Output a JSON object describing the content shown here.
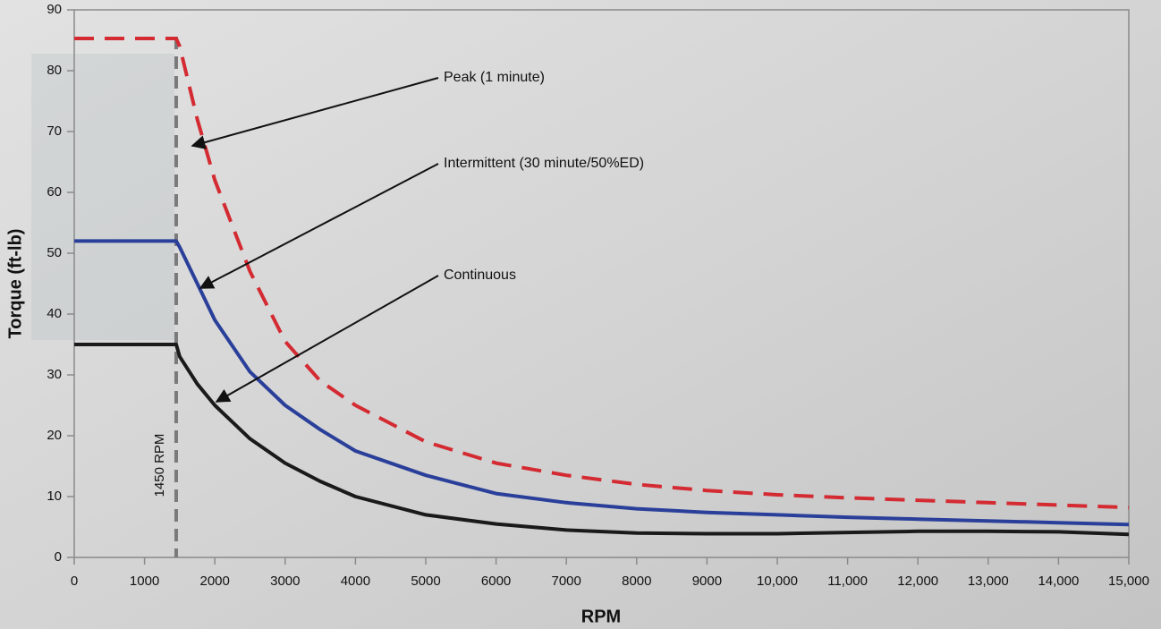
{
  "chart_data": {
    "type": "line",
    "x_label": "RPM",
    "y_label": "Torque (ft-lb)",
    "xlim": [
      0,
      15000
    ],
    "ylim": [
      0,
      90
    ],
    "xticks": [
      0,
      1000,
      2000,
      3000,
      4000,
      5000,
      6000,
      7000,
      8000,
      9000,
      {
        "value": 10000,
        "label": "10,000"
      },
      {
        "value": 11000,
        "label": "11,000"
      },
      {
        "value": 12000,
        "label": "12,000"
      },
      {
        "value": 13000,
        "label": "13,000"
      },
      {
        "value": 14000,
        "label": "14,000"
      },
      {
        "value": 15000,
        "label": "15,000"
      }
    ],
    "yticks": [
      0,
      10,
      20,
      30,
      40,
      50,
      60,
      70,
      80,
      90
    ],
    "vline": {
      "x": 1450,
      "label": "1450 RPM",
      "color": "#7a7a7a"
    },
    "x": [
      0,
      1450,
      1500,
      1750,
      2000,
      2500,
      3000,
      3500,
      4000,
      5000,
      6000,
      7000,
      8000,
      9000,
      10000,
      11000,
      12000,
      13000,
      14000,
      15000
    ],
    "series": [
      {
        "name": "Peak (1 minute)",
        "color": "#d42a32",
        "dashed": true,
        "values": [
          85.3,
          85.3,
          84,
          72,
          62,
          47,
          35.5,
          29,
          25,
          19,
          15.5,
          13.5,
          12,
          11,
          10.3,
          9.8,
          9.4,
          9,
          8.6,
          8.2
        ]
      },
      {
        "name": "Intermittent (30 minute/50%ED)",
        "color": "#2a3f9a",
        "dashed": false,
        "values": [
          52,
          52,
          51,
          45,
          39,
          30.5,
          25,
          21,
          17.5,
          13.5,
          10.5,
          9,
          8,
          7.4,
          7,
          6.6,
          6.3,
          6,
          5.7,
          5.4
        ]
      },
      {
        "name": "Continuous",
        "color": "#1a1a1a",
        "dashed": false,
        "values": [
          35,
          35,
          33,
          28.5,
          25,
          19.5,
          15.5,
          12.5,
          10,
          7,
          5.5,
          4.5,
          4,
          3.9,
          3.9,
          4.1,
          4.3,
          4.3,
          4.2,
          3.8
        ]
      }
    ]
  }
}
